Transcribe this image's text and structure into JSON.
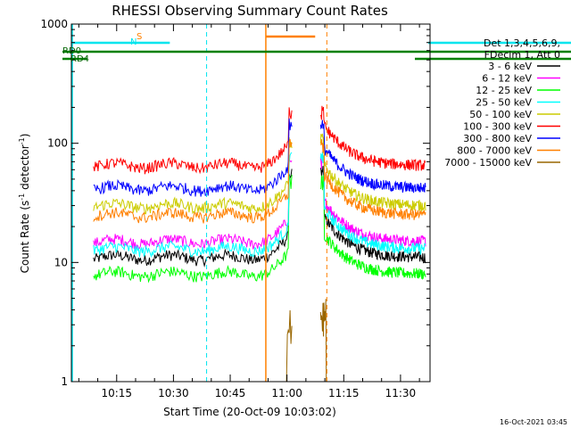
{
  "chart_data": {
    "type": "line",
    "title": "RHESSI Observing Summary Count Rates",
    "xlabel": "Start Time (20-Oct-09 10:03:02)",
    "ylabel_main": "Count Rate (s",
    "ylabel_sup1": "-1",
    "ylabel_mid": " detector",
    "ylabel_sup2": "-1",
    "ylabel_end": ")",
    "yscale": "log",
    "ylim": [
      1,
      1000
    ],
    "y_ticks": [
      {
        "v": 1,
        "label": "1"
      },
      {
        "v": 10,
        "label": "10"
      },
      {
        "v": 100,
        "label": "100"
      },
      {
        "v": 1000,
        "label": "1000"
      }
    ],
    "xlim_minutes": [
      3.03,
      43.0
    ],
    "x_ticks": [
      {
        "m": 15,
        "label": "10:15"
      },
      {
        "m": 30,
        "label": "10:30"
      },
      {
        "m": 45,
        "label": "10:45"
      },
      {
        "m": 60,
        "label": "11:00"
      },
      {
        "m": 75,
        "label": "11:15"
      },
      {
        "m": 90,
        "label": "11:30"
      }
    ],
    "legend_header": [
      "Det 1,3,4,5,6,9,",
      "FDecim 1, Att 0"
    ],
    "series": [
      {
        "name": "3 - 6 keV",
        "color": "#000000",
        "base": 11,
        "peak": 60
      },
      {
        "name": "6 - 12 keV",
        "color": "#ff00ff",
        "base": 15,
        "peak": 70
      },
      {
        "name": "12 - 25 keV",
        "color": "#00ff00",
        "base": 8,
        "peak": 50
      },
      {
        "name": "25 - 50 keV",
        "color": "#00ffff",
        "base": 13,
        "peak": 80
      },
      {
        "name": "50 - 100 keV",
        "color": "#cccc00",
        "base": 30,
        "peak": 110
      },
      {
        "name": "100 - 300 keV",
        "color": "#ff0000",
        "base": 65,
        "peak": 190
      },
      {
        "name": "300 - 800 keV",
        "color": "#0000ff",
        "base": 42,
        "peak": 150
      },
      {
        "name": "800 - 7000 keV",
        "color": "#ff8000",
        "base": 25,
        "peak": 100
      },
      {
        "name": "7000 - 15000 keV",
        "color": "#996600",
        "base": 0.5,
        "peak": 5
      }
    ],
    "flags": {
      "n_label": "N",
      "s_label": "S",
      "rd0_label": "RD0",
      "rd4_label": "RD4"
    },
    "timestamp": "16-Oct-2021 03:45"
  }
}
